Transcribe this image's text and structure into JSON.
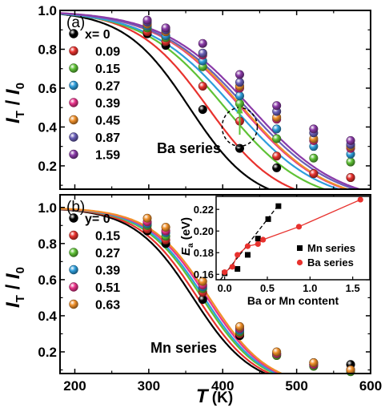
{
  "chart_data": [
    {
      "panel": "(a)",
      "type": "scatter",
      "xlim": [
        180,
        600
      ],
      "ylim": [
        0.08,
        1.0
      ],
      "ylabel_main": "I",
      "ylabel_sub1": "T",
      "ylabel_mid": " / I",
      "ylabel_sub2": "0",
      "xticks": [
        200,
        300,
        400,
        500,
        600
      ],
      "yticks": [
        0.2,
        0.4,
        0.6,
        0.8,
        1.0
      ],
      "ytick_labels": [
        "0.2",
        "0.4",
        "0.6",
        "0.8",
        "1.0"
      ],
      "legend_prefix": "x= ",
      "series_label": "Ba series",
      "x": [
        298,
        323,
        373,
        423,
        473,
        523,
        573
      ],
      "series": [
        {
          "name": "0",
          "color": "#000000",
          "values": [
            0.88,
            0.82,
            0.49,
            0.29,
            0.19,
            0.16,
            0.14
          ],
          "fit_T": 355,
          "fit_w": 44
        },
        {
          "name": "0.09",
          "color": "#e8322e",
          "values": [
            0.89,
            0.84,
            0.61,
            0.43,
            0.25,
            0.16,
            0.14
          ],
          "fit_T": 380,
          "fit_w": 48
        },
        {
          "name": "0.15",
          "color": "#5fc236",
          "values": [
            0.91,
            0.86,
            0.71,
            0.52,
            0.34,
            0.24,
            0.22
          ],
          "fit_T": 403,
          "fit_w": 55
        },
        {
          "name": "0.27",
          "color": "#2e9edc",
          "values": [
            0.92,
            0.87,
            0.74,
            0.56,
            0.39,
            0.3,
            0.26
          ],
          "fit_T": 415,
          "fit_w": 58
        },
        {
          "name": "0.39",
          "color": "#e8338a",
          "values": [
            0.93,
            0.89,
            0.77,
            0.6,
            0.44,
            0.33,
            0.29
          ],
          "fit_T": 425,
          "fit_w": 58
        },
        {
          "name": "0.45",
          "color": "#f0902a",
          "values": [
            0.93,
            0.89,
            0.78,
            0.61,
            0.45,
            0.34,
            0.3
          ],
          "fit_T": 427,
          "fit_w": 58
        },
        {
          "name": "0.87",
          "color": "#6a5fb8",
          "values": [
            0.94,
            0.9,
            0.78,
            0.63,
            0.48,
            0.37,
            0.31
          ],
          "fit_T": 432,
          "fit_w": 60
        },
        {
          "name": "1.59",
          "color": "#8a3aa8",
          "values": [
            0.95,
            0.91,
            0.83,
            0.67,
            0.51,
            0.39,
            0.33
          ],
          "fit_T": 438,
          "fit_w": 60
        }
      ]
    },
    {
      "panel": "(b)",
      "type": "scatter",
      "xlim": [
        180,
        600
      ],
      "ylim": [
        0.08,
        1.07
      ],
      "xlabel_main": "T",
      "xlabel_unit": " (K)",
      "ylabel_main": "I",
      "ylabel_sub1": "T",
      "ylabel_mid": " / I",
      "ylabel_sub2": "0",
      "xticks": [
        200,
        300,
        400,
        500,
        600
      ],
      "xtick_labels": [
        "200",
        "300",
        "400",
        "500",
        "600"
      ],
      "yticks": [
        0.2,
        0.4,
        0.6,
        0.8,
        1.0
      ],
      "ytick_labels": [
        "0.2",
        "0.4",
        "0.6",
        "0.8",
        "1.0"
      ],
      "legend_prefix": "y= ",
      "series_label": "Mn series",
      "x": [
        298,
        323,
        373,
        423,
        473,
        523,
        573
      ],
      "series": [
        {
          "name": "0",
          "color": "#000000",
          "values": [
            0.87,
            0.8,
            0.49,
            0.29,
            0.19,
            0.14,
            0.13
          ],
          "fit_T": 360,
          "fit_w": 40
        },
        {
          "name": "0.15",
          "color": "#e8322e",
          "values": [
            0.88,
            0.82,
            0.53,
            0.3,
            0.18,
            0.13,
            0.1
          ],
          "fit_T": 366,
          "fit_w": 40
        },
        {
          "name": "0.27",
          "color": "#5fc236",
          "values": [
            0.9,
            0.84,
            0.55,
            0.31,
            0.18,
            0.12,
            0.09
          ],
          "fit_T": 372,
          "fit_w": 40
        },
        {
          "name": "0.39",
          "color": "#2e9edc",
          "values": [
            0.91,
            0.86,
            0.56,
            0.32,
            0.19,
            0.13,
            0.1
          ],
          "fit_T": 375,
          "fit_w": 40
        },
        {
          "name": "0.51",
          "color": "#e8338a",
          "values": [
            0.92,
            0.87,
            0.57,
            0.33,
            0.19,
            0.13,
            0.1
          ],
          "fit_T": 379,
          "fit_w": 40
        },
        {
          "name": "0.63",
          "color": "#f0902a",
          "values": [
            0.94,
            0.89,
            0.59,
            0.34,
            0.2,
            0.14,
            0.1
          ],
          "fit_T": 382,
          "fit_w": 40
        }
      ],
      "inset": {
        "xlabel": "Ba or Mn content",
        "ylabel_main": "E",
        "ylabel_sub": "a",
        "ylabel_unit": " (eV)",
        "xlim": [
          -0.1,
          1.7
        ],
        "ylim": [
          0.155,
          0.232
        ],
        "xticks": [
          0.0,
          0.5,
          1.0,
          1.5
        ],
        "xtick_labels": [
          "0.0",
          "0.5",
          "1.0",
          "1.5"
        ],
        "yticks": [
          0.16,
          0.18,
          0.2,
          0.22
        ],
        "ytick_labels": [
          "0.16",
          "0.18",
          "0.20",
          "0.22"
        ],
        "series": [
          {
            "name": "Mn series",
            "color": "#000000",
            "marker": "square",
            "x": [
              0.0,
              0.15,
              0.27,
              0.39,
              0.51,
              0.63
            ],
            "y": [
              0.161,
              0.165,
              0.178,
              0.193,
              0.211,
              0.223
            ],
            "fit": [
              [
                -0.05,
                0.155
              ],
              [
                0.63,
                0.224
              ]
            ]
          },
          {
            "name": "Ba series",
            "color": "#e8322e",
            "marker": "circle",
            "x": [
              0.0,
              0.09,
              0.15,
              0.27,
              0.39,
              0.45,
              0.87,
              1.59
            ],
            "y": [
              0.162,
              0.167,
              0.178,
              0.186,
              0.188,
              0.192,
              0.204,
              0.229
            ]
          }
        ]
      }
    }
  ]
}
